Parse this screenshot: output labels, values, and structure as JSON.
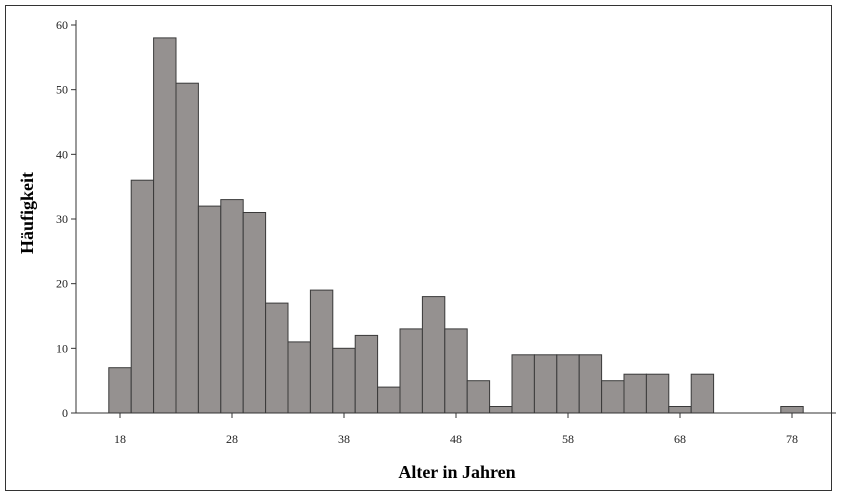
{
  "chart_data": {
    "type": "bar",
    "title": "",
    "xlabel": "Alter in Jahren",
    "ylabel": "Häufigkeit",
    "bin_width": 2,
    "x": [
      18,
      20,
      22,
      24,
      26,
      28,
      30,
      32,
      34,
      36,
      38,
      40,
      42,
      44,
      46,
      48,
      50,
      52,
      54,
      56,
      58,
      60,
      62,
      64,
      66,
      68,
      70,
      72,
      74,
      76,
      78
    ],
    "values": [
      7,
      36,
      58,
      51,
      32,
      33,
      31,
      17,
      11,
      19,
      10,
      12,
      4,
      13,
      18,
      13,
      5,
      1,
      9,
      9,
      9,
      9,
      5,
      6,
      6,
      1,
      6,
      0,
      0,
      0,
      1
    ],
    "xticks": [
      18,
      28,
      38,
      48,
      58,
      68,
      78
    ],
    "yticks": [
      0,
      10,
      20,
      30,
      40,
      50,
      60
    ],
    "xlim": [
      17,
      79
    ],
    "ylim": [
      0,
      60
    ],
    "bar_color": "#959190",
    "edge_color": "#3a3a3a",
    "grid": false,
    "legend": "none"
  }
}
